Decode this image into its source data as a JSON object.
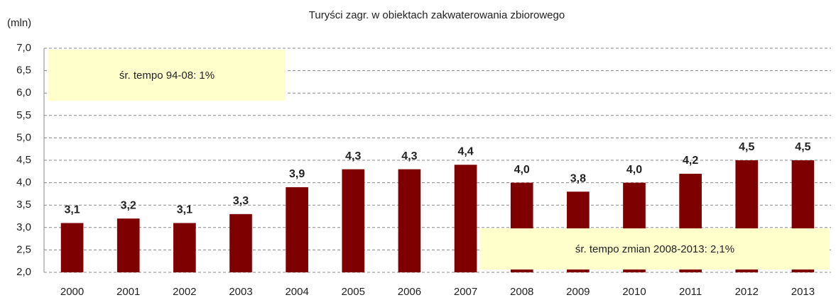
{
  "chart_data": {
    "type": "bar",
    "title": "Turyści zagr. w obiektach zakwaterowania zbiorowego",
    "y_label": "(mln)",
    "categories": [
      "2000",
      "2001",
      "2002",
      "2003",
      "2004",
      "2005",
      "2006",
      "2007",
      "2008",
      "2009",
      "2010",
      "2011",
      "2012",
      "2013"
    ],
    "values": [
      3.1,
      3.2,
      3.1,
      3.3,
      3.9,
      4.3,
      4.3,
      4.4,
      4.0,
      3.8,
      4.0,
      4.2,
      4.5,
      4.5
    ],
    "value_labels": [
      "3,1",
      "3,2",
      "3,1",
      "3,3",
      "3,9",
      "4,3",
      "4,3",
      "4,4",
      "4,0",
      "3,8",
      "4,0",
      "4,2",
      "4,5",
      "4,5"
    ],
    "color": "#7f0000",
    "ylim": [
      2.0,
      7.0
    ],
    "yticks": [
      {
        "value": 2.0,
        "label": "2,0"
      },
      {
        "value": 2.5,
        "label": "2,5"
      },
      {
        "value": 3.0,
        "label": "3,0"
      },
      {
        "value": 3.5,
        "label": "3,5"
      },
      {
        "value": 4.0,
        "label": "4,0"
      },
      {
        "value": 4.5,
        "label": "4,5"
      },
      {
        "value": 5.0,
        "label": "5,0"
      },
      {
        "value": 5.5,
        "label": "5,5"
      },
      {
        "value": 6.0,
        "label": "6,0"
      },
      {
        "value": 6.5,
        "label": "6,5"
      },
      {
        "value": 7.0,
        "label": "7,0"
      }
    ],
    "grid": true,
    "annotations": [
      "śr. tempo 94-08: 1%",
      "śr. tempo zmian 2008-2013: 2,1%"
    ]
  }
}
